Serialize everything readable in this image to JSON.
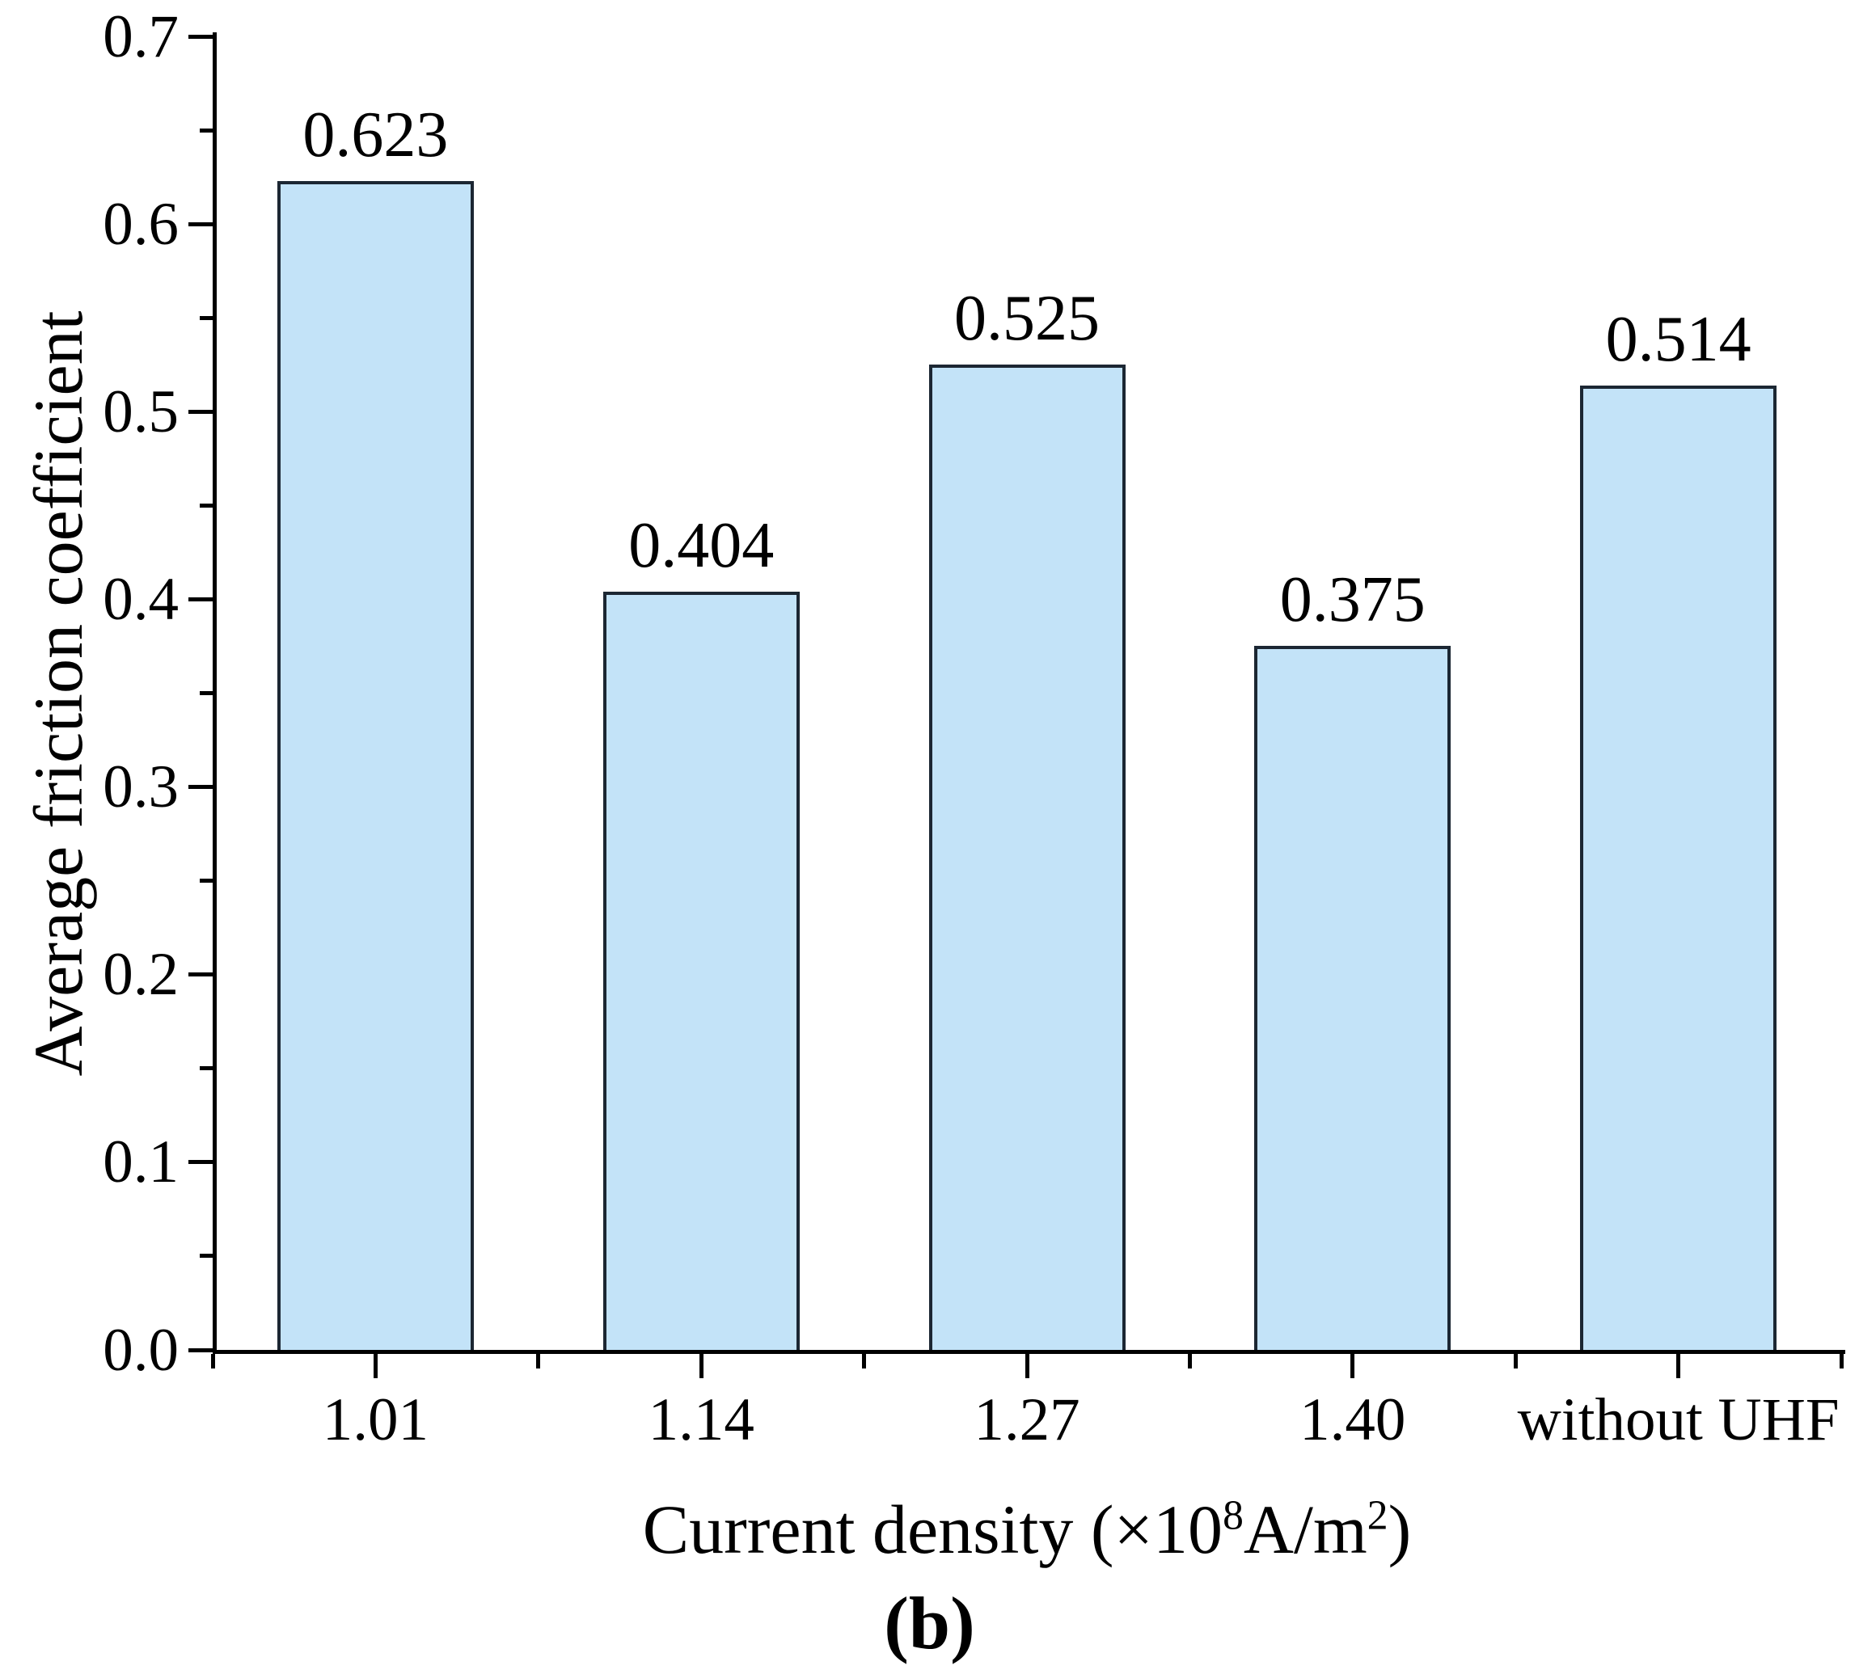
{
  "figure": {
    "panel_label": "(b)"
  },
  "chart_data": {
    "type": "bar",
    "title": "",
    "categories": [
      "1.01",
      "1.14",
      "1.27",
      "1.40",
      "without UHF"
    ],
    "values": [
      0.623,
      0.404,
      0.525,
      0.375,
      0.514
    ],
    "value_labels": [
      "0.623",
      "0.404",
      "0.525",
      "0.375",
      "0.514"
    ],
    "xlabel": "Current density (×10⁸A/m²)",
    "xlabel_parts": {
      "prefix": "Current density (×10",
      "sup1": "8",
      "mid": "A/m",
      "sup2": "2",
      "suffix": ")"
    },
    "ylabel": "Average friction coefficient",
    "ylim": [
      0.0,
      0.7
    ],
    "ytick_step": 0.1,
    "ytick_minor_step": 0.05,
    "ytick_labels": [
      "0.0",
      "0.1",
      "0.2",
      "0.3",
      "0.4",
      "0.5",
      "0.6",
      "0.7"
    ],
    "grid": false,
    "legend": "none",
    "bar_fill_color": "#c3e3f8",
    "bar_border_color": "#1c2733",
    "axis_color": "#000000",
    "text_color": "#000000"
  }
}
